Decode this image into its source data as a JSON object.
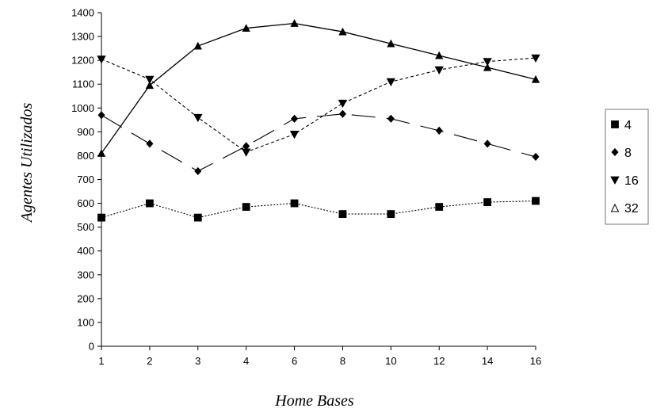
{
  "chart_data": {
    "type": "line",
    "xlabel": "Home Bases",
    "ylabel": "Agentes Utilizados",
    "categories": [
      "1",
      "2",
      "3",
      "4",
      "6",
      "8",
      "10",
      "12",
      "14",
      "16"
    ],
    "ylim": [
      0,
      1400
    ],
    "yticks": [
      0,
      100,
      200,
      300,
      400,
      500,
      600,
      700,
      800,
      900,
      1000,
      1100,
      1200,
      1300,
      1400
    ],
    "grid": false,
    "legend_position": "right",
    "series": [
      {
        "name": "4",
        "marker": "square",
        "line": "dotted",
        "values": [
          540,
          600,
          540,
          585,
          600,
          555,
          555,
          585,
          605,
          610
        ]
      },
      {
        "name": "8",
        "marker": "diamond",
        "line": "long-dash",
        "values": [
          970,
          850,
          735,
          840,
          955,
          975,
          955,
          905,
          850,
          795
        ]
      },
      {
        "name": "16",
        "marker": "triangle-down",
        "line": "short-dash",
        "values": [
          1205,
          1120,
          960,
          815,
          890,
          1020,
          1110,
          1160,
          1195,
          1210
        ]
      },
      {
        "name": "32",
        "marker": "triangle-up",
        "line": "solid",
        "values": [
          810,
          1095,
          1260,
          1335,
          1355,
          1320,
          1270,
          1220,
          1170,
          1120
        ]
      }
    ]
  }
}
